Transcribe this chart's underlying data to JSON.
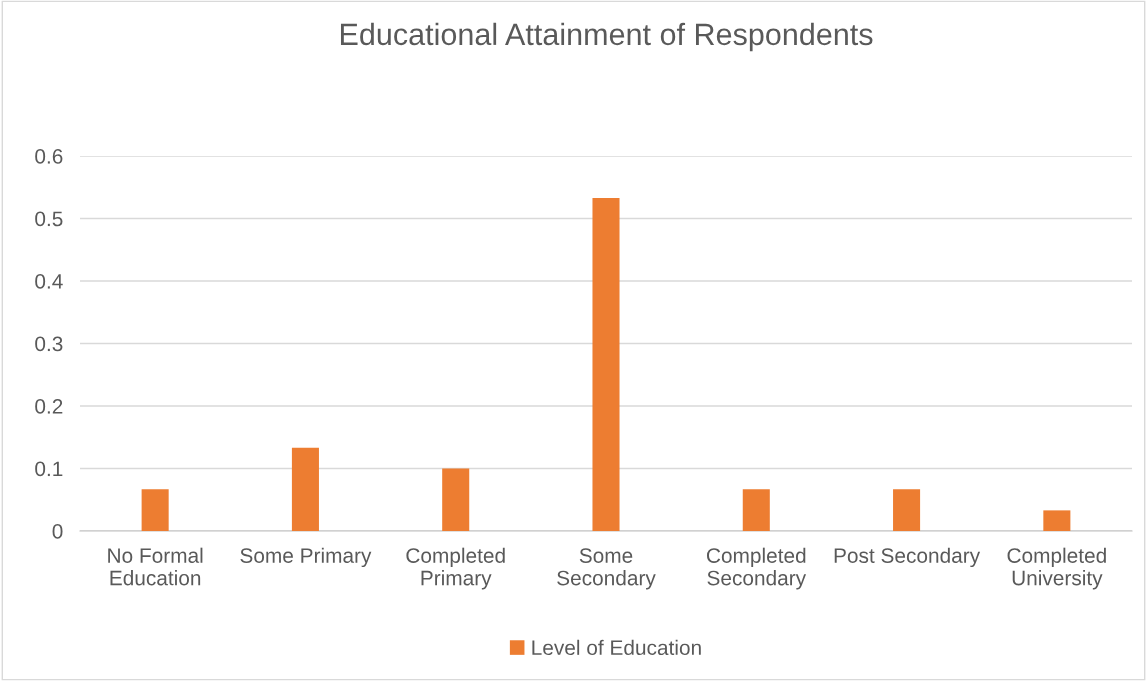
{
  "chart_data": {
    "type": "bar",
    "title": "Educational Attainment of Respondents",
    "categories": [
      "No Formal\nEducation",
      "Some Primary",
      "Completed\nPrimary",
      "Some\nSecondary",
      "Completed\nSecondary",
      "Post Secondary",
      "Completed\nUniversity"
    ],
    "series": [
      {
        "name": "Level of Education",
        "color": "#ed7d31",
        "values": [
          0.067,
          0.133,
          0.1,
          0.533,
          0.067,
          0.067,
          0.033
        ]
      }
    ],
    "ylim": [
      0,
      0.6
    ],
    "yticks": [
      0,
      0.1,
      0.2,
      0.3,
      0.4,
      0.5,
      0.6
    ],
    "grid": "y",
    "legend": "bottom"
  }
}
